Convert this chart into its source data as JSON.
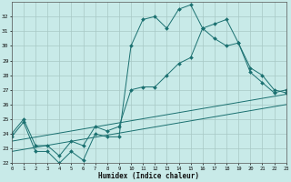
{
  "xlabel": "Humidex (Indice chaleur)",
  "xlim": [
    0,
    23
  ],
  "ylim": [
    22,
    33
  ],
  "yticks": [
    22,
    23,
    24,
    25,
    26,
    27,
    28,
    29,
    30,
    31,
    32
  ],
  "xticks": [
    0,
    1,
    2,
    3,
    4,
    5,
    6,
    7,
    8,
    9,
    10,
    11,
    12,
    13,
    14,
    15,
    16,
    17,
    18,
    19,
    20,
    21,
    22,
    23
  ],
  "background_color": "#c8eae8",
  "grid_color": "#a8c8c5",
  "line_color": "#1a7070",
  "series": [
    {
      "x": [
        0,
        1,
        2,
        3,
        4,
        5,
        6,
        7,
        8,
        9,
        10,
        11,
        12,
        13,
        14,
        15,
        16,
        17,
        18,
        19,
        20,
        21,
        22,
        23
      ],
      "y": [
        23.8,
        24.8,
        22.8,
        22.8,
        22.0,
        22.8,
        22.2,
        24.0,
        23.8,
        23.8,
        30.0,
        31.8,
        32.0,
        31.2,
        32.5,
        32.8,
        31.2,
        31.5,
        31.8,
        30.2,
        28.2,
        27.5,
        26.8,
        27.0
      ],
      "marker": true
    },
    {
      "x": [
        0,
        1,
        2,
        3,
        4,
        5,
        6,
        7,
        8,
        9,
        10,
        11,
        12,
        13,
        14,
        15,
        16,
        17,
        18,
        19,
        20,
        21,
        22,
        23
      ],
      "y": [
        24.0,
        25.0,
        23.2,
        23.2,
        22.5,
        23.5,
        23.2,
        24.5,
        24.2,
        24.5,
        27.0,
        27.2,
        27.2,
        28.0,
        28.8,
        29.2,
        31.2,
        30.5,
        30.0,
        30.2,
        28.5,
        28.0,
        27.0,
        26.8
      ],
      "marker": true
    },
    {
      "x": [
        0,
        23
      ],
      "y": [
        23.5,
        26.7
      ],
      "marker": false
    },
    {
      "x": [
        0,
        23
      ],
      "y": [
        22.8,
        26.0
      ],
      "marker": false
    }
  ]
}
